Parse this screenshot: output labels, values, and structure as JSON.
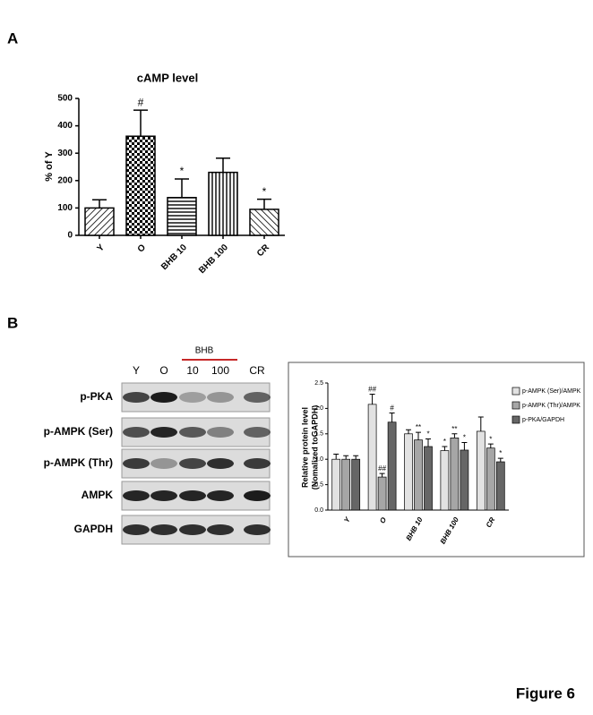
{
  "panels": {
    "label_a": "A",
    "label_b": "B",
    "figure_label": "Figure 6",
    "blot": {
      "group_label": "BHB",
      "lanes": [
        "Y",
        "O",
        "10",
        "100",
        "CR"
      ],
      "rows": [
        "p-PKA",
        "p-AMPK (Ser)",
        "p-AMPK (Thr)",
        "AMPK",
        "GAPDH"
      ]
    }
  },
  "chart_data": [
    {
      "type": "bar",
      "title": "cAMP level",
      "y_label": "% of Y",
      "categories": [
        "Y",
        "O",
        "BHB 10",
        "BHB 100",
        "CR"
      ],
      "values": [
        100,
        362,
        138,
        230,
        95
      ],
      "errors": [
        30,
        95,
        68,
        52,
        37
      ],
      "annotations": [
        null,
        "#",
        "*",
        null,
        "*"
      ],
      "ylim": [
        0,
        500
      ],
      "yticks": [
        0,
        100,
        200,
        300,
        400,
        500
      ]
    },
    {
      "type": "grouped-bar",
      "y_label": [
        "Relative protein level",
        "(Nomalized toGAPDH)"
      ],
      "categories": [
        "Y",
        "O",
        "BHB 10",
        "BHB 100",
        "CR"
      ],
      "series": [
        {
          "name": "p-AMPK (Ser)/AMPK",
          "color": "#e2e2e2",
          "values": [
            1.0,
            2.08,
            1.5,
            1.17,
            1.55
          ],
          "errors": [
            0.1,
            0.2,
            0.08,
            0.08,
            0.28
          ],
          "annotations": [
            null,
            "##",
            null,
            "*",
            null
          ]
        },
        {
          "name": "p-AMPK (Thr)/AMPK",
          "color": "#a6a6a6",
          "values": [
            1.0,
            0.65,
            1.38,
            1.42,
            1.22
          ],
          "errors": [
            0.07,
            0.07,
            0.15,
            0.08,
            0.08
          ],
          "annotations": [
            null,
            "##",
            "**",
            "**",
            "*"
          ]
        },
        {
          "name": "p-PKA/GAPDH",
          "color": "#666666",
          "values": [
            1.0,
            1.73,
            1.25,
            1.18,
            0.95
          ],
          "errors": [
            0.07,
            0.18,
            0.15,
            0.15,
            0.07
          ],
          "annotations": [
            null,
            "#",
            "*",
            "*",
            "*"
          ]
        }
      ],
      "ylim": [
        0,
        2.5
      ],
      "yticks": [
        {
          "value": 0,
          "label": "0.0"
        },
        0.5,
        {
          "value": 1,
          "label": "1.0"
        },
        1.5,
        {
          "value": 2,
          "label": "2.0"
        },
        2.5
      ]
    }
  ]
}
